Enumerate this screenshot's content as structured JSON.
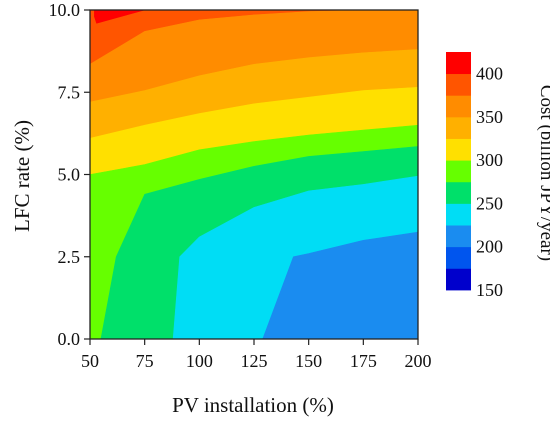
{
  "chart_data": {
    "type": "heatmap",
    "subtype": "filled-contour",
    "xlabel": "PV installation (%)",
    "ylabel": "LFC rate (%)",
    "xlim": [
      50,
      200
    ],
    "ylim": [
      0.0,
      10.0
    ],
    "xticks": [
      50,
      75,
      100,
      125,
      150,
      175,
      200
    ],
    "xtick_labels": [
      "50",
      "75",
      "100",
      "125",
      "150",
      "175",
      "200"
    ],
    "yticks": [
      0.0,
      2.5,
      5.0,
      7.5,
      10.0
    ],
    "ytick_labels": [
      "0.0",
      "2.5",
      "5.0",
      "7.5",
      "10.0"
    ],
    "colorbar": {
      "label": "Cost (billion JPY/year)",
      "ticks": [
        150,
        200,
        250,
        300,
        350,
        400
      ],
      "tick_labels": [
        "150",
        "200",
        "250",
        "300",
        "350",
        "400"
      ]
    },
    "levels": [
      {
        "range": [
          150,
          175
        ],
        "color": "#0000cc"
      },
      {
        "range": [
          175,
          200
        ],
        "color": "#0055ee"
      },
      {
        "range": [
          200,
          225
        ],
        "color": "#1a8cf0"
      },
      {
        "range": [
          225,
          250
        ],
        "color": "#00ddf5"
      },
      {
        "range": [
          250,
          275
        ],
        "color": "#00e06a"
      },
      {
        "range": [
          275,
          300
        ],
        "color": "#66ff00"
      },
      {
        "range": [
          300,
          325
        ],
        "color": "#ffe000"
      },
      {
        "range": [
          325,
          350
        ],
        "color": "#ffb000"
      },
      {
        "range": [
          350,
          375
        ],
        "color": "#ff8c00"
      },
      {
        "range": [
          375,
          400
        ],
        "color": "#ff5500"
      },
      {
        "range": [
          400,
          425
        ],
        "color": "#ff0000"
      }
    ],
    "regions": [
      {
        "level_index": 9,
        "polygon": [
          [
            50,
            10.0
          ],
          [
            200,
            10.0
          ],
          [
            200,
            10.0
          ],
          [
            180,
            10.0
          ],
          [
            150,
            9.95
          ],
          [
            125,
            9.85
          ],
          [
            100,
            9.7
          ],
          [
            75,
            9.35
          ],
          [
            50,
            8.35
          ]
        ]
      },
      {
        "level_index": 8,
        "polygon": [
          [
            50,
            8.35
          ],
          [
            75,
            9.35
          ],
          [
            100,
            9.7
          ],
          [
            125,
            9.85
          ],
          [
            150,
            9.95
          ],
          [
            180,
            10.0
          ],
          [
            200,
            10.0
          ],
          [
            200,
            8.8
          ],
          [
            175,
            8.7
          ],
          [
            150,
            8.55
          ],
          [
            125,
            8.35
          ],
          [
            100,
            8.0
          ],
          [
            75,
            7.55
          ],
          [
            50,
            7.2
          ]
        ]
      },
      {
        "level_index": 7,
        "polygon": [
          [
            50,
            7.2
          ],
          [
            75,
            7.55
          ],
          [
            100,
            8.0
          ],
          [
            125,
            8.35
          ],
          [
            150,
            8.55
          ],
          [
            175,
            8.7
          ],
          [
            200,
            8.8
          ],
          [
            200,
            7.65
          ],
          [
            175,
            7.55
          ],
          [
            150,
            7.35
          ],
          [
            125,
            7.15
          ],
          [
            100,
            6.85
          ],
          [
            75,
            6.5
          ],
          [
            50,
            6.1
          ]
        ]
      },
      {
        "level_index": 6,
        "polygon": [
          [
            50,
            6.1
          ],
          [
            75,
            6.5
          ],
          [
            100,
            6.85
          ],
          [
            125,
            7.15
          ],
          [
            150,
            7.35
          ],
          [
            175,
            7.55
          ],
          [
            200,
            7.65
          ],
          [
            200,
            6.5
          ],
          [
            175,
            6.35
          ],
          [
            150,
            6.2
          ],
          [
            125,
            6.0
          ],
          [
            100,
            5.75
          ],
          [
            75,
            5.3
          ],
          [
            50,
            5.0
          ]
        ]
      },
      {
        "level_index": 5,
        "polygon": [
          [
            50,
            5.0
          ],
          [
            75,
            5.3
          ],
          [
            100,
            5.75
          ],
          [
            125,
            6.0
          ],
          [
            150,
            6.2
          ],
          [
            175,
            6.35
          ],
          [
            200,
            6.5
          ],
          [
            200,
            5.85
          ],
          [
            175,
            5.7
          ],
          [
            150,
            5.55
          ],
          [
            125,
            5.25
          ],
          [
            100,
            4.85
          ],
          [
            75,
            4.4
          ],
          [
            62,
            2.5
          ],
          [
            55,
            0.0
          ],
          [
            50,
            0.0
          ]
        ]
      },
      {
        "level_index": 4,
        "polygon": [
          [
            55,
            0.0
          ],
          [
            62,
            2.5
          ],
          [
            75,
            4.4
          ],
          [
            100,
            4.85
          ],
          [
            125,
            5.25
          ],
          [
            150,
            5.55
          ],
          [
            175,
            5.7
          ],
          [
            200,
            5.85
          ],
          [
            200,
            4.95
          ],
          [
            175,
            4.7
          ],
          [
            150,
            4.5
          ],
          [
            125,
            4.0
          ],
          [
            100,
            3.1
          ],
          [
            91,
            2.5
          ],
          [
            88,
            0.0
          ]
        ]
      },
      {
        "level_index": 3,
        "polygon": [
          [
            88,
            0.0
          ],
          [
            91,
            2.5
          ],
          [
            100,
            3.1
          ],
          [
            125,
            4.0
          ],
          [
            150,
            4.5
          ],
          [
            175,
            4.7
          ],
          [
            200,
            4.95
          ],
          [
            200,
            3.25
          ],
          [
            175,
            3.0
          ],
          [
            150,
            2.6
          ],
          [
            143,
            2.5
          ],
          [
            129,
            0.0
          ]
        ]
      },
      {
        "level_index": 2,
        "polygon": [
          [
            129,
            0.0
          ],
          [
            143,
            2.5
          ],
          [
            150,
            2.6
          ],
          [
            175,
            3.0
          ],
          [
            200,
            3.25
          ],
          [
            200,
            0.0
          ]
        ]
      },
      {
        "level_index": 10,
        "polygon": [
          [
            52,
            10.0
          ],
          [
            75,
            10.0
          ],
          [
            53,
            9.6
          ],
          [
            52,
            9.8
          ]
        ]
      }
    ]
  }
}
